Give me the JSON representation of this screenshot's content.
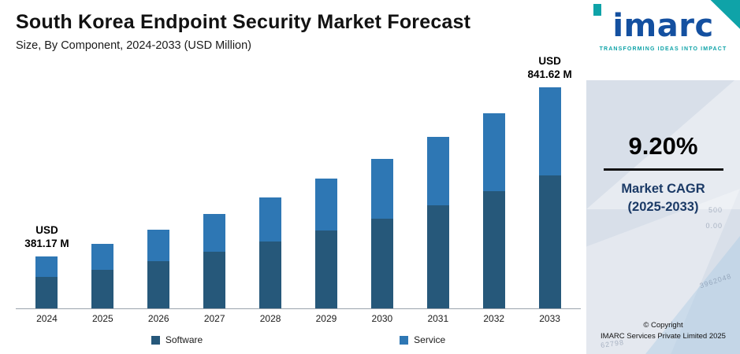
{
  "header": {
    "title": "South Korea Endpoint Security Market Forecast",
    "subtitle": "Size, By Component, 2024-2033 (USD Million)"
  },
  "chart_data": {
    "type": "bar",
    "stacked": true,
    "categories": [
      "2024",
      "2025",
      "2026",
      "2027",
      "2028",
      "2029",
      "2030",
      "2031",
      "2032",
      "2033"
    ],
    "series": [
      {
        "name": "Software",
        "color": "#26587a",
        "values": [
          228.7,
          249.74,
          272.72,
          297.81,
          325.21,
          355.13,
          387.8,
          423.47,
          462.43,
          504.97
        ]
      },
      {
        "name": "Service",
        "color": "#2e77b4",
        "values": [
          152.47,
          166.5,
          181.81,
          198.54,
          216.8,
          236.75,
          258.53,
          282.32,
          308.29,
          336.65
        ]
      }
    ],
    "totals": [
      381.17,
      416.24,
      454.53,
      496.35,
      542.01,
      591.88,
      646.33,
      705.79,
      770.72,
      841.62
    ],
    "annotations": [
      {
        "category": "2024",
        "lines": [
          "USD",
          "381.17 M"
        ]
      },
      {
        "category": "2033",
        "lines": [
          "USD",
          "841.62 M"
        ]
      }
    ],
    "title": "South Korea Endpoint Security Market Forecast",
    "xlabel": "",
    "ylabel": "USD Million",
    "ylim": [
      240,
      860
    ],
    "grid": false,
    "legend_position": "bottom"
  },
  "sidebar": {
    "logo_text": "imarc",
    "tagline": "TRANSFORMING IDEAS INTO IMPACT",
    "cagr_value": "9.20%",
    "cagr_label_line1": "Market CAGR",
    "cagr_label_line2": "(2025-2033)",
    "copyright_line1": "© Copyright",
    "copyright_line2": "IMARC Services Private Limited 2025",
    "watermarks": [
      "500",
      "0.00",
      "3962048",
      "62798"
    ]
  },
  "colors": {
    "software": "#26587a",
    "service": "#2e77b4",
    "sidebar_bg": "#d8dfe9",
    "brand_blue": "#1450a0",
    "brand_teal": "#0fa3a8",
    "cagr_navy": "#1b3a66"
  }
}
